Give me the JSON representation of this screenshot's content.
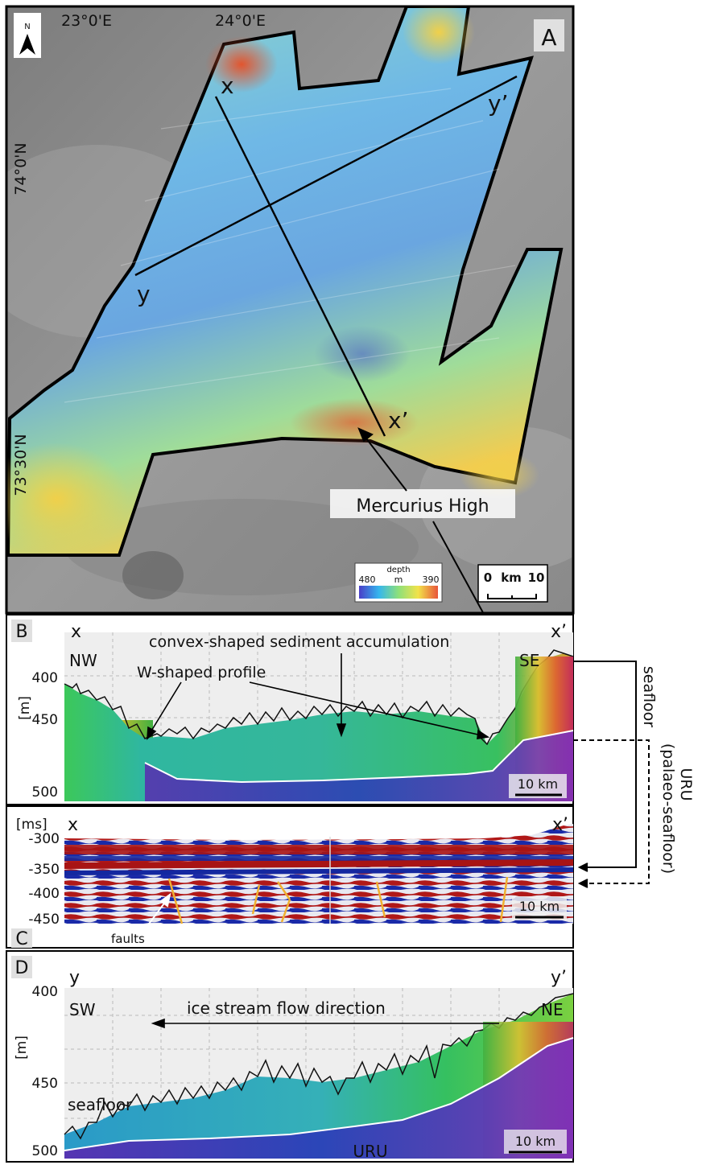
{
  "panel_a": {
    "letter": "A",
    "north": "N",
    "lon_labels": [
      "23°0'E",
      "24°0'E"
    ],
    "lat_labels": [
      "74°0'N",
      "73°30'N"
    ],
    "line_labels": {
      "x": "x",
      "x_prime": "x’",
      "y": "y",
      "y_prime": "y’"
    },
    "callout": "Mercurius High",
    "colorbar": {
      "title": "depth",
      "min": "480",
      "unit": "m",
      "max": "390"
    },
    "scalebar": {
      "zero": "0",
      "unit": "km",
      "max": "10"
    }
  },
  "panel_b": {
    "letter": "B",
    "start": "x",
    "end": "x’",
    "dir_left": "NW",
    "dir_right": "SE",
    "axis_unit": "[m]",
    "y_ticks": [
      "400",
      "450",
      "500"
    ],
    "annotation_1": "convex-shaped sediment accumulation",
    "annotation_2": "W-shaped profile",
    "scale": "10 km"
  },
  "panel_c": {
    "letter": "C",
    "start": "x",
    "end": "x’",
    "axis_unit": "[ms]",
    "y_ticks": [
      "-300",
      "-350",
      "-400",
      "-450"
    ],
    "faults_label": "faults",
    "scale": "10 km"
  },
  "panel_d": {
    "letter": "D",
    "start": "y",
    "end": "y’",
    "dir_left": "SW",
    "dir_right": "NE",
    "axis_unit": "[m]",
    "y_ticks": [
      "400",
      "450",
      "500"
    ],
    "flow_label": "ice stream flow direction",
    "seafloor_label": "seafloor",
    "uru_label": "URU",
    "scale": "10 km"
  },
  "side_labels": {
    "seafloor": "seafloor",
    "uru": "URU",
    "palaeo": "(palaeo-seafloor)"
  },
  "colors": {
    "deep": "#4a55c8",
    "mid": "#6fd3c8",
    "shallow": "#e8553a",
    "reflector_red": "#a81414",
    "reflector_blue": "#1428a0",
    "fault": "#f0b030"
  }
}
